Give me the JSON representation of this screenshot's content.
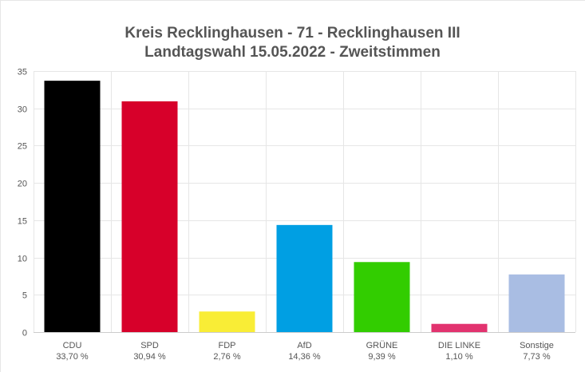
{
  "chart_data": {
    "type": "bar",
    "title": "Kreis Recklinghausen - 71 - Recklinghausen III",
    "subtitle": "Landtagswahl 15.05.2022  - Zweitstimmen",
    "categories": [
      "CDU",
      "SPD",
      "FDP",
      "AfD",
      "GRÜNE",
      "DIE LINKE",
      "Sonstige"
    ],
    "values": [
      33.7,
      30.94,
      2.76,
      14.36,
      9.39,
      1.1,
      7.73
    ],
    "value_labels": [
      "33,70 %",
      "30,94 %",
      "2,76 %",
      "14,36 %",
      "9,39 %",
      "1,10 %",
      "7,73 %"
    ],
    "colors": [
      "#000000",
      "#d7002a",
      "#f9ed36",
      "#009fe3",
      "#32cd00",
      "#e2336f",
      "#a9bde3"
    ],
    "yticks": [
      "0",
      "5",
      "10",
      "15",
      "20",
      "25",
      "30",
      "35"
    ],
    "ylim": [
      0,
      35
    ],
    "grid": true,
    "xlabel": "",
    "ylabel": ""
  }
}
